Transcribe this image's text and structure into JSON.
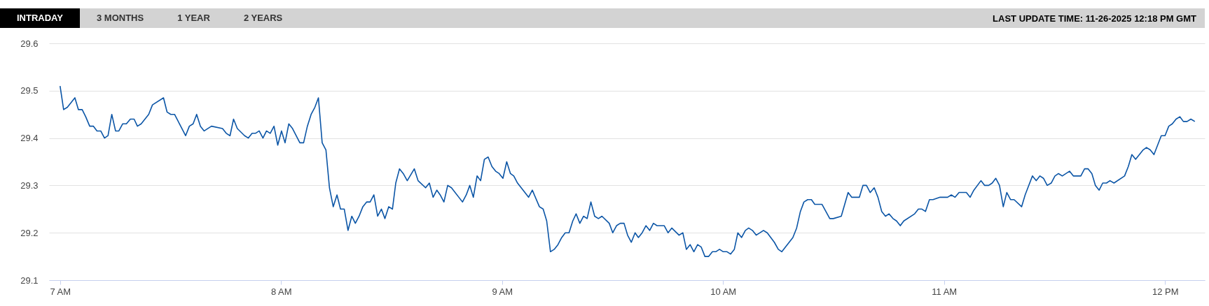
{
  "chart_data": {
    "type": "line",
    "annotations": [
      "INTRADAY",
      "3 MONTHS",
      "1 YEAR",
      "2 YEARS",
      "LAST UPDATE TIME: 11-26-2025 12:18 PM GMT"
    ],
    "xlim": [
      6.95,
      12.18
    ],
    "xticks": [
      {
        "value": 7,
        "label": "7 AM"
      },
      {
        "value": 8,
        "label": "8 AM"
      },
      {
        "value": 9,
        "label": "9 AM"
      },
      {
        "value": 10,
        "label": "10 AM"
      },
      {
        "value": 11,
        "label": "11 AM"
      },
      {
        "value": 12,
        "label": "12 PM"
      }
    ],
    "ylim": [
      29.1,
      29.6
    ],
    "yticks": [
      29.1,
      29.2,
      29.3,
      29.4,
      29.5,
      29.6
    ],
    "grid": "y",
    "series": [
      {
        "color": "#0b55a6",
        "x": [
          7.0,
          7.016,
          7.033,
          7.067,
          7.083,
          7.1,
          7.116,
          7.134,
          7.151,
          7.167,
          7.184,
          7.201,
          7.217,
          7.234,
          7.251,
          7.266,
          7.283,
          7.3,
          7.318,
          7.335,
          7.35,
          7.367,
          7.401,
          7.418,
          7.468,
          7.484,
          7.501,
          7.518,
          7.568,
          7.585,
          7.602,
          7.618,
          7.635,
          7.652,
          7.685,
          7.735,
          7.752,
          7.769,
          7.785,
          7.802,
          7.835,
          7.852,
          7.869,
          7.884,
          7.901,
          7.918,
          7.934,
          7.951,
          7.968,
          7.985,
          8.002,
          8.018,
          8.035,
          8.052,
          8.085,
          8.102,
          8.119,
          8.136,
          8.153,
          8.169,
          8.186,
          8.203,
          8.219,
          8.236,
          8.253,
          8.269,
          8.286,
          8.303,
          8.32,
          8.336,
          8.353,
          8.37,
          8.387,
          8.403,
          8.42,
          8.437,
          8.454,
          8.47,
          8.487,
          8.504,
          8.519,
          8.536,
          8.553,
          8.571,
          8.603,
          8.62,
          8.654,
          8.671,
          8.688,
          8.705,
          8.72,
          8.737,
          8.754,
          8.771,
          8.821,
          8.838,
          8.854,
          8.87,
          8.887,
          8.903,
          8.92,
          8.937,
          8.954,
          8.971,
          8.987,
          9.004,
          9.021,
          9.038,
          9.053,
          9.07,
          9.12,
          9.137,
          9.169,
          9.186,
          9.202,
          9.219,
          9.236,
          9.253,
          9.27,
          9.286,
          9.303,
          9.32,
          9.335,
          9.352,
          9.369,
          9.385,
          9.402,
          9.419,
          9.436,
          9.452,
          9.485,
          9.501,
          9.518,
          9.535,
          9.552,
          9.568,
          9.585,
          9.602,
          9.617,
          9.634,
          9.651,
          9.668,
          9.685,
          9.701,
          9.734,
          9.751,
          9.768,
          9.801,
          9.818,
          9.834,
          9.851,
          9.868,
          9.885,
          9.901,
          9.918,
          9.935,
          9.952,
          9.967,
          9.984,
          10.001,
          10.018,
          10.034,
          10.051,
          10.067,
          10.084,
          10.101,
          10.116,
          10.133,
          10.15,
          10.183,
          10.2,
          10.232,
          10.25,
          10.266,
          10.316,
          10.333,
          10.35,
          10.366,
          10.383,
          10.4,
          10.415,
          10.448,
          10.483,
          10.499,
          10.535,
          10.566,
          10.582,
          10.617,
          10.633,
          10.649,
          10.666,
          10.684,
          10.701,
          10.718,
          10.735,
          10.751,
          10.769,
          10.785,
          10.802,
          10.818,
          10.867,
          10.884,
          10.9,
          10.916,
          10.934,
          10.95,
          10.982,
          11.016,
          11.033,
          11.05,
          11.068,
          11.101,
          11.118,
          11.135,
          11.167,
          11.184,
          11.202,
          11.218,
          11.234,
          11.251,
          11.268,
          11.284,
          11.301,
          11.317,
          11.351,
          11.367,
          11.4,
          11.417,
          11.434,
          11.45,
          11.467,
          11.485,
          11.502,
          11.518,
          11.535,
          11.568,
          11.585,
          11.619,
          11.636,
          11.652,
          11.669,
          11.685,
          11.702,
          11.718,
          11.735,
          11.751,
          11.769,
          11.817,
          11.834,
          11.85,
          11.867,
          11.901,
          11.916,
          11.933,
          11.95,
          11.983,
          12.0,
          12.017,
          12.033,
          12.05,
          12.067,
          12.083,
          12.1,
          12.117,
          12.135
        ],
        "values": [
          29.51,
          29.46,
          29.465,
          29.485,
          29.46,
          29.46,
          29.445,
          29.425,
          29.425,
          29.415,
          29.415,
          29.4,
          29.405,
          29.45,
          29.415,
          29.415,
          29.43,
          29.43,
          29.44,
          29.44,
          29.425,
          29.43,
          29.45,
          29.47,
          29.485,
          29.455,
          29.45,
          29.45,
          29.405,
          29.425,
          29.43,
          29.45,
          29.425,
          29.415,
          29.425,
          29.42,
          29.41,
          29.405,
          29.44,
          29.42,
          29.405,
          29.4,
          29.41,
          29.41,
          29.415,
          29.4,
          29.415,
          29.41,
          29.425,
          29.385,
          29.415,
          29.39,
          29.43,
          29.42,
          29.39,
          29.39,
          29.425,
          29.45,
          29.465,
          29.485,
          29.39,
          29.375,
          29.295,
          29.255,
          29.28,
          29.25,
          29.25,
          29.205,
          29.235,
          29.22,
          29.235,
          29.255,
          29.265,
          29.265,
          29.28,
          29.235,
          29.25,
          29.23,
          29.255,
          29.25,
          29.305,
          29.335,
          29.325,
          29.31,
          29.335,
          29.31,
          29.295,
          29.305,
          29.275,
          29.29,
          29.28,
          29.265,
          29.3,
          29.295,
          29.265,
          29.28,
          29.3,
          29.275,
          29.32,
          29.31,
          29.355,
          29.36,
          29.34,
          29.33,
          29.325,
          29.315,
          29.35,
          29.325,
          29.32,
          29.305,
          29.275,
          29.29,
          29.255,
          29.25,
          29.225,
          29.16,
          29.165,
          29.175,
          29.19,
          29.2,
          29.2,
          29.225,
          29.24,
          29.22,
          29.235,
          29.23,
          29.265,
          29.235,
          29.23,
          29.235,
          29.22,
          29.2,
          29.215,
          29.22,
          29.22,
          29.195,
          29.18,
          29.2,
          29.19,
          29.2,
          29.215,
          29.205,
          29.22,
          29.215,
          29.215,
          29.2,
          29.21,
          29.195,
          29.2,
          29.165,
          29.175,
          29.16,
          29.175,
          29.17,
          29.15,
          29.15,
          29.16,
          29.16,
          29.165,
          29.16,
          29.16,
          29.155,
          29.165,
          29.2,
          29.19,
          29.205,
          29.21,
          29.205,
          29.195,
          29.205,
          29.2,
          29.18,
          29.165,
          29.16,
          29.19,
          29.21,
          29.245,
          29.265,
          29.27,
          29.27,
          29.26,
          29.26,
          29.23,
          29.23,
          29.235,
          29.285,
          29.275,
          29.275,
          29.3,
          29.3,
          29.285,
          29.295,
          29.275,
          29.245,
          29.235,
          29.24,
          29.23,
          29.225,
          29.215,
          29.225,
          29.24,
          29.25,
          29.25,
          29.245,
          29.27,
          29.27,
          29.275,
          29.275,
          29.28,
          29.275,
          29.285,
          29.285,
          29.275,
          29.29,
          29.31,
          29.3,
          29.3,
          29.305,
          29.315,
          29.3,
          29.255,
          29.285,
          29.27,
          29.27,
          29.255,
          29.28,
          29.32,
          29.31,
          29.32,
          29.315,
          29.3,
          29.305,
          29.32,
          29.325,
          29.32,
          29.33,
          29.32,
          29.32,
          29.335,
          29.335,
          29.325,
          29.3,
          29.29,
          29.305,
          29.305,
          29.31,
          29.305,
          29.32,
          29.34,
          29.365,
          29.355,
          29.375,
          29.38,
          29.375,
          29.365,
          29.405,
          29.405,
          29.425,
          29.43,
          29.44,
          29.445,
          29.435,
          29.435,
          29.44,
          29.435
        ]
      }
    ]
  }
}
